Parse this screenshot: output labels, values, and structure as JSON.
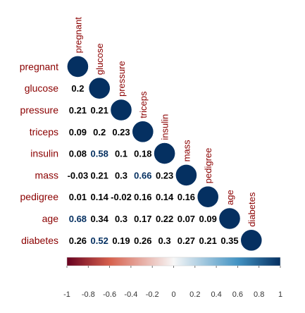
{
  "chart_data": {
    "type": "heatmap",
    "title": "",
    "variables": [
      "pregnant",
      "glucose",
      "pressure",
      "triceps",
      "insulin",
      "mass",
      "pedigree",
      "age",
      "diabetes"
    ],
    "lower_triangle_display": "number",
    "upper_triangle_display": "circle",
    "lower_labels": [
      [],
      [
        "0.2"
      ],
      [
        "0.21",
        "0.21"
      ],
      [
        "0.09",
        "0.2",
        "0.23"
      ],
      [
        "0.08",
        "0.58",
        "0.1",
        "0.18"
      ],
      [
        "-0.03",
        "0.21",
        "0.3",
        "0.66",
        "0.23"
      ],
      [
        "0.01",
        "0.14",
        "-0.02",
        "0.16",
        "0.14",
        "0.16"
      ],
      [
        "0.68",
        "0.34",
        "0.3",
        "0.17",
        "0.22",
        "0.07",
        "0.09"
      ],
      [
        "0.26",
        "0.52",
        "0.19",
        "0.26",
        "0.3",
        "0.27",
        "0.21",
        "0.35"
      ]
    ],
    "diagonal_values": [
      1,
      1,
      1,
      1,
      1,
      1,
      1,
      1,
      1
    ],
    "colorbar": {
      "range": [
        -1,
        1
      ],
      "ticks": [
        "-1",
        "-0.8",
        "-0.6",
        "-0.4",
        "-0.2",
        "0",
        "0.2",
        "0.4",
        "0.6",
        "0.8",
        "1"
      ],
      "colors": {
        "negative": "#67001f",
        "mid": "#f7f7f7",
        "positive": "#053061"
      }
    },
    "grid": false,
    "legend": "bottom"
  }
}
